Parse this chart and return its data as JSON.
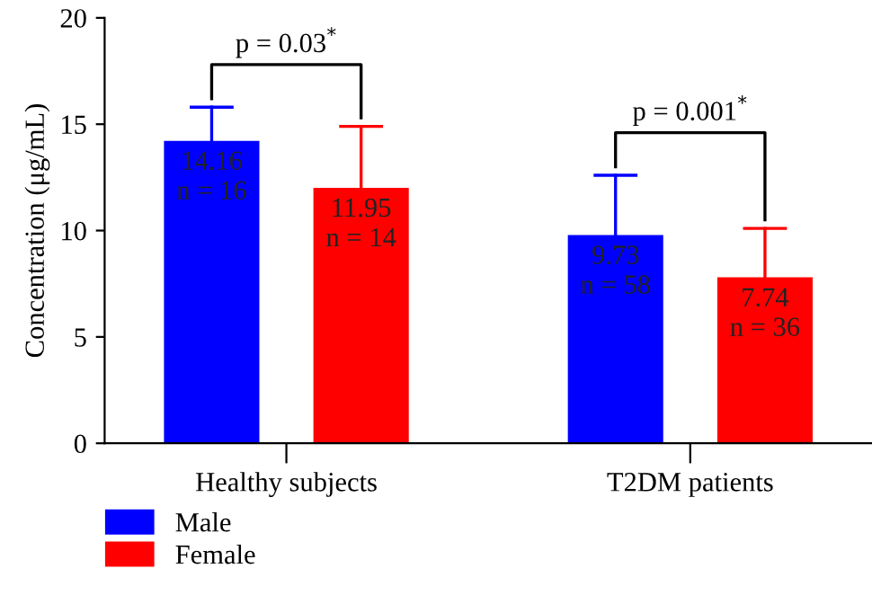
{
  "chart_data": {
    "type": "bar",
    "ylabel": "Concentration (μg/mL)",
    "categories": [
      "Healthy subjects",
      "T2DM patients"
    ],
    "series": [
      {
        "name": "Male",
        "color": "#0000ff",
        "values": [
          14.16,
          9.73
        ],
        "errors": [
          [
            14.16,
            15.8
          ],
          [
            9.73,
            12.6
          ]
        ],
        "value_labels": [
          "14.16\nn = 16",
          "9.73\nn = 58"
        ]
      },
      {
        "name": "Female",
        "color": "#ff0000",
        "values": [
          11.95,
          7.74
        ],
        "errors": [
          [
            11.95,
            14.9
          ],
          [
            7.74,
            10.1
          ]
        ],
        "value_labels": [
          "11.95\nn = 14",
          "7.74\nn = 36"
        ]
      }
    ],
    "annotations": [
      "p = 0.03$^{*}$",
      "p = 0.001$^{*}$"
    ],
    "ylim": [
      0,
      20
    ],
    "yticks": [
      0,
      5,
      10,
      15,
      20
    ],
    "grid": false,
    "legend": "bottom left"
  }
}
